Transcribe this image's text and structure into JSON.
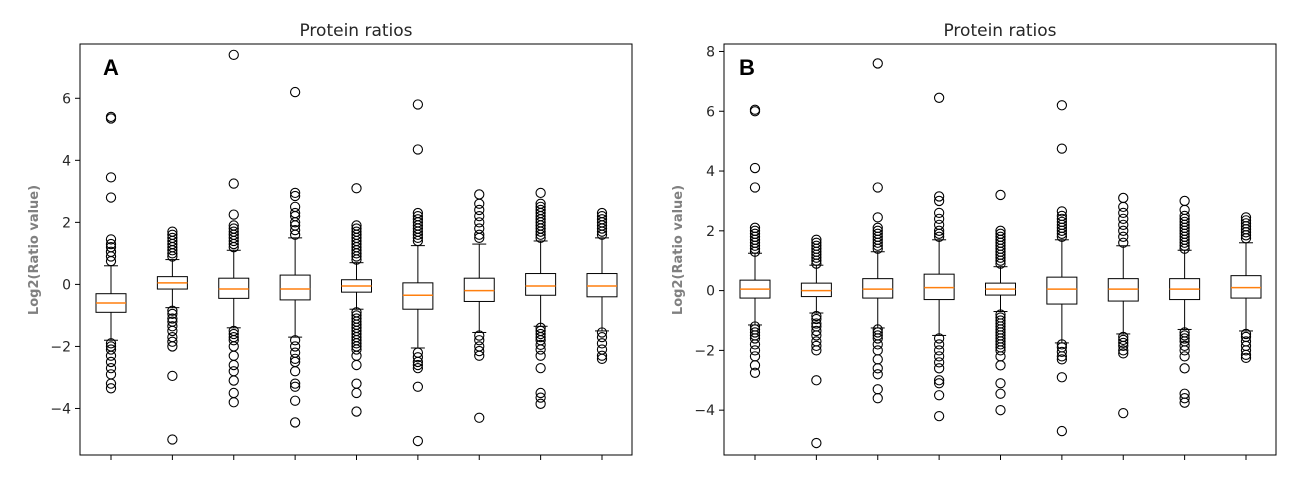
{
  "chart_data": [
    {
      "type": "box",
      "panel_label": "A",
      "title": "Protein ratios",
      "ylabel": "Log2(Ratio value)",
      "xlabel": "",
      "ylim": [
        -5.5,
        7.75
      ],
      "yticks": [
        -4,
        -2,
        0,
        2,
        4,
        6
      ],
      "n_boxes": 9,
      "median_color": "#ff7f0e",
      "boxes": [
        {
          "q1": -0.9,
          "median": -0.6,
          "q3": -0.3,
          "whislo": -1.8,
          "whishi": 0.6,
          "fliers": [
            5.35,
            5.4,
            3.45,
            2.8,
            1.45,
            1.3,
            1.2,
            1.05,
            0.9,
            0.75,
            -1.9,
            -2.0,
            -2.1,
            -2.3,
            -2.5,
            -2.7,
            -2.9,
            -3.2,
            -3.35
          ]
        },
        {
          "q1": -0.15,
          "median": 0.05,
          "q3": 0.25,
          "whislo": -0.75,
          "whishi": 0.8,
          "fliers": [
            1.7,
            1.6,
            1.5,
            1.4,
            1.3,
            1.2,
            1.1,
            1.0,
            0.9,
            -0.85,
            -0.95,
            -1.1,
            -1.2,
            -1.35,
            -1.5,
            -1.7,
            -1.85,
            -2.0,
            -2.95,
            -5.0
          ]
        },
        {
          "q1": -0.45,
          "median": -0.15,
          "q3": 0.2,
          "whislo": -1.4,
          "whishi": 1.1,
          "fliers": [
            7.4,
            3.25,
            2.25,
            1.9,
            1.8,
            1.7,
            1.6,
            1.5,
            1.4,
            1.3,
            1.2,
            -1.5,
            -1.6,
            -1.7,
            -1.8,
            -2.0,
            -2.3,
            -2.6,
            -2.8,
            -3.1,
            -3.5,
            -3.8
          ]
        },
        {
          "q1": -0.5,
          "median": -0.15,
          "q3": 0.3,
          "whislo": -1.7,
          "whishi": 1.5,
          "fliers": [
            6.2,
            2.95,
            2.85,
            2.5,
            2.3,
            2.2,
            2.0,
            1.9,
            1.75,
            1.6,
            -1.8,
            -2.0,
            -2.2,
            -2.4,
            -2.5,
            -2.8,
            -3.2,
            -3.3,
            -3.75,
            -4.45
          ]
        },
        {
          "q1": -0.25,
          "median": -0.05,
          "q3": 0.15,
          "whislo": -0.8,
          "whishi": 0.7,
          "fliers": [
            3.1,
            1.9,
            1.8,
            1.7,
            1.6,
            1.5,
            1.4,
            1.3,
            1.2,
            1.1,
            1.0,
            0.9,
            0.8,
            -0.9,
            -1.0,
            -1.1,
            -1.2,
            -1.3,
            -1.4,
            -1.5,
            -1.6,
            -1.7,
            -1.8,
            -1.9,
            -2.0,
            -2.1,
            -2.3,
            -2.6,
            -3.2,
            -3.5,
            -4.1
          ]
        },
        {
          "q1": -0.8,
          "median": -0.35,
          "q3": 0.05,
          "whislo": -2.05,
          "whishi": 1.25,
          "fliers": [
            5.8,
            4.35,
            2.3,
            2.2,
            2.1,
            2.0,
            1.9,
            1.8,
            1.7,
            1.6,
            1.5,
            1.4,
            -2.2,
            -2.35,
            -2.5,
            -2.6,
            -2.7,
            -3.3,
            -5.05
          ]
        },
        {
          "q1": -0.55,
          "median": -0.2,
          "q3": 0.2,
          "whislo": -1.55,
          "whishi": 1.3,
          "fliers": [
            2.9,
            2.6,
            2.4,
            2.2,
            2.0,
            1.8,
            1.6,
            1.5,
            -1.65,
            -1.8,
            -2.0,
            -2.15,
            -2.3,
            -4.3
          ]
        },
        {
          "q1": -0.35,
          "median": -0.05,
          "q3": 0.35,
          "whislo": -1.35,
          "whishi": 1.4,
          "fliers": [
            2.95,
            2.6,
            2.5,
            2.4,
            2.3,
            2.2,
            2.1,
            2.0,
            1.9,
            1.8,
            1.7,
            1.6,
            1.5,
            -1.4,
            -1.5,
            -1.6,
            -1.7,
            -1.8,
            -1.95,
            -2.1,
            -2.3,
            -2.7,
            -3.5,
            -3.65,
            -3.85
          ]
        },
        {
          "q1": -0.4,
          "median": -0.05,
          "q3": 0.35,
          "whislo": -1.5,
          "whishi": 1.5,
          "fliers": [
            2.3,
            2.2,
            2.1,
            2.0,
            1.9,
            1.8,
            1.7,
            1.6,
            -1.55,
            -1.7,
            -1.9,
            -2.1,
            -2.3,
            -2.4
          ]
        }
      ]
    },
    {
      "type": "box",
      "panel_label": "B",
      "title": "Protein ratios",
      "ylabel": "Log2(Ratio value)",
      "xlabel": "",
      "ylim": [
        -5.5,
        8.25
      ],
      "yticks": [
        -4,
        -2,
        0,
        2,
        4,
        6,
        8
      ],
      "n_boxes": 9,
      "median_color": "#ff7f0e",
      "boxes": [
        {
          "q1": -0.25,
          "median": 0.05,
          "q3": 0.35,
          "whislo": -1.15,
          "whishi": 1.25,
          "fliers": [
            6.0,
            6.05,
            4.1,
            3.45,
            2.1,
            2.0,
            1.9,
            1.8,
            1.7,
            1.6,
            1.5,
            1.4,
            1.3,
            -1.2,
            -1.3,
            -1.4,
            -1.5,
            -1.6,
            -1.8,
            -2.0,
            -2.2,
            -2.5,
            -2.75
          ]
        },
        {
          "q1": -0.2,
          "median": 0.0,
          "q3": 0.25,
          "whislo": -0.75,
          "whishi": 0.85,
          "fliers": [
            1.7,
            1.6,
            1.5,
            1.4,
            1.3,
            1.2,
            1.1,
            1.0,
            0.9,
            -0.85,
            -0.95,
            -1.1,
            -1.2,
            -1.35,
            -1.5,
            -1.7,
            -1.85,
            -2.0,
            -3.0,
            -5.1
          ]
        },
        {
          "q1": -0.25,
          "median": 0.05,
          "q3": 0.4,
          "whislo": -1.25,
          "whishi": 1.3,
          "fliers": [
            7.6,
            3.45,
            2.45,
            2.1,
            2.0,
            1.9,
            1.8,
            1.7,
            1.6,
            1.5,
            1.4,
            -1.3,
            -1.4,
            -1.5,
            -1.6,
            -1.8,
            -2.0,
            -2.3,
            -2.6,
            -2.8,
            -3.3,
            -3.6
          ]
        },
        {
          "q1": -0.3,
          "median": 0.1,
          "q3": 0.55,
          "whislo": -1.5,
          "whishi": 1.7,
          "fliers": [
            6.45,
            3.15,
            3.0,
            2.6,
            2.4,
            2.2,
            2.0,
            1.9,
            1.8,
            -1.6,
            -1.8,
            -2.0,
            -2.2,
            -2.4,
            -2.6,
            -3.0,
            -3.1,
            -3.5,
            -4.2
          ]
        },
        {
          "q1": -0.15,
          "median": 0.05,
          "q3": 0.25,
          "whislo": -0.7,
          "whishi": 0.8,
          "fliers": [
            3.2,
            2.0,
            1.9,
            1.8,
            1.7,
            1.6,
            1.5,
            1.4,
            1.3,
            1.2,
            1.1,
            1.0,
            0.9,
            -0.8,
            -0.9,
            -1.0,
            -1.1,
            -1.2,
            -1.3,
            -1.4,
            -1.5,
            -1.6,
            -1.7,
            -1.8,
            -1.9,
            -2.0,
            -2.2,
            -2.5,
            -3.1,
            -3.45,
            -4.0
          ]
        },
        {
          "q1": -0.45,
          "median": 0.05,
          "q3": 0.45,
          "whislo": -1.75,
          "whishi": 1.7,
          "fliers": [
            6.2,
            4.75,
            2.65,
            2.5,
            2.4,
            2.3,
            2.2,
            2.1,
            2.0,
            1.9,
            1.8,
            -1.8,
            -1.9,
            -2.05,
            -2.2,
            -2.3,
            -2.9,
            -4.7
          ]
        },
        {
          "q1": -0.35,
          "median": 0.05,
          "q3": 0.4,
          "whislo": -1.45,
          "whishi": 1.5,
          "fliers": [
            3.1,
            2.8,
            2.6,
            2.4,
            2.2,
            2.0,
            1.8,
            1.6,
            -1.55,
            -1.65,
            -1.75,
            -1.85,
            -2.0,
            -2.1,
            -4.1
          ]
        },
        {
          "q1": -0.3,
          "median": 0.05,
          "q3": 0.4,
          "whislo": -1.3,
          "whishi": 1.35,
          "fliers": [
            3.0,
            2.7,
            2.5,
            2.4,
            2.3,
            2.2,
            2.1,
            2.0,
            1.9,
            1.8,
            1.7,
            1.6,
            1.5,
            1.4,
            -1.4,
            -1.5,
            -1.6,
            -1.7,
            -1.85,
            -2.0,
            -2.2,
            -2.6,
            -3.45,
            -3.6,
            -3.75
          ]
        },
        {
          "q1": -0.25,
          "median": 0.1,
          "q3": 0.5,
          "whislo": -1.35,
          "whishi": 1.6,
          "fliers": [
            2.45,
            2.35,
            2.25,
            2.15,
            2.05,
            1.95,
            1.85,
            1.75,
            -1.45,
            -1.55,
            -1.7,
            -1.85,
            -2.0,
            -2.15,
            -2.25
          ]
        }
      ]
    }
  ]
}
